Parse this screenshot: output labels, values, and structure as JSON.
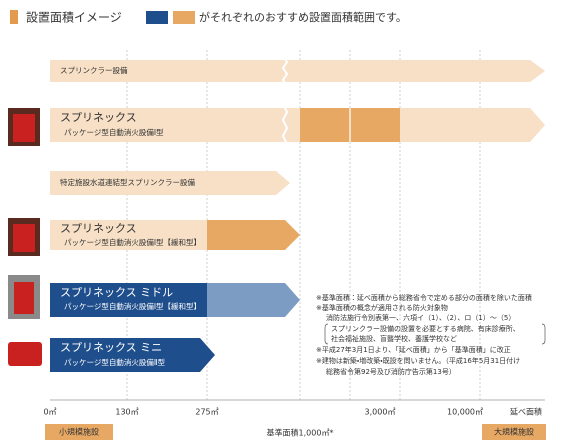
{
  "header": {
    "title": "設置面積イメージ",
    "legend_text": "がそれぞれのおすすめ設置面積範囲です。"
  },
  "rows": [
    {
      "label": "スプリンクラー設備"
    },
    {
      "title": "スプリネックス",
      "subtitle": "パッケージ型自動消火設備Ⅰ型"
    },
    {
      "label": "特定施設水道連結型スプリンクラー設備"
    },
    {
      "title": "スプリネックス",
      "subtitle": "パッケージ型自動消火設備Ⅰ型【緩和型】"
    },
    {
      "title": "スプリネックス ミドル",
      "subtitle": "パッケージ型自動消火設備Ⅰ型【緩和型】"
    },
    {
      "title": "スプリネックス ミニ",
      "subtitle": "パッケージ型自動消火設備Ⅱ型"
    }
  ],
  "notes": [
    "※基準面積：延べ面積から総務省令で定める部分の面積を除いた面積",
    "※基準面積の概念が適用される防火対象物",
    "消防法施行令別表第一、六項イ（1）、（2）、ロ（1）〜（5）",
    "スプリンクラー設備の設置を必要とする病院、有床診療所、",
    "社会福祉施設、盲聾学校、養護学校など",
    "※平成27年3月1日より、「延べ面積」から「基準面積」に改正",
    "※建物は新築・増改築・既設を問いません。（平成16年5月31日付け",
    "総務省令第92号及び消防庁告示第13号）"
  ],
  "axis": {
    "ticks": [
      "0㎡",
      "130㎡",
      "275㎡",
      "3,000㎡",
      "10,000㎡",
      "延べ面積"
    ],
    "base": "基準面積1,000㎡*",
    "small": "小規模施設",
    "large": "大規模施設"
  }
}
